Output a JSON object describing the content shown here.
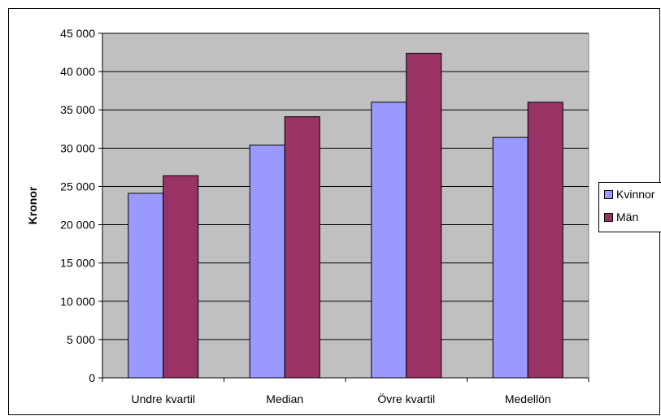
{
  "chart_data": {
    "type": "bar",
    "categories": [
      "Undre kvartil",
      "Median",
      "Övre kvartil",
      "Medellön"
    ],
    "series": [
      {
        "name": "Kvinnor",
        "values": [
          24100,
          30400,
          36000,
          31400
        ],
        "color": "#9999ff"
      },
      {
        "name": "Män",
        "values": [
          26400,
          34100,
          42400,
          36000
        ],
        "color": "#993366"
      }
    ],
    "ylabel": "Kronor",
    "xlabel": "",
    "ylim": [
      0,
      45000
    ],
    "yticks": [
      0,
      5000,
      10000,
      15000,
      20000,
      25000,
      30000,
      35000,
      40000,
      45000
    ],
    "ytick_labels": [
      "0",
      "5 000",
      "10 000",
      "15 000",
      "20 000",
      "25 000",
      "30 000",
      "35 000",
      "40 000",
      "45 000"
    ],
    "grid": true,
    "legend_position": "right",
    "plot_background": "#c0c0c0"
  }
}
